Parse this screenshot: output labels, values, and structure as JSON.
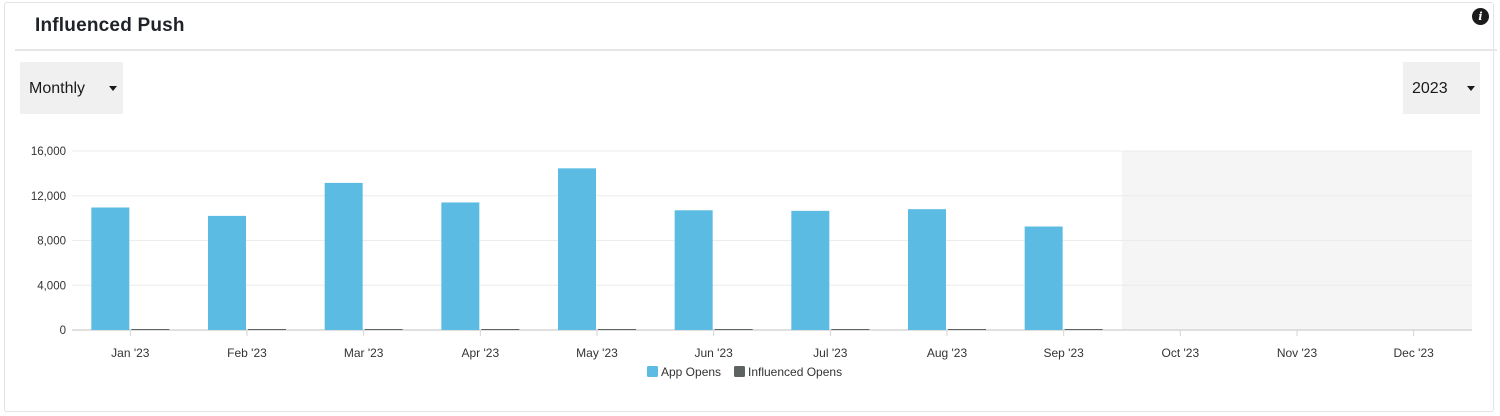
{
  "header": {
    "title": "Influenced Push",
    "info_icon": "info-icon"
  },
  "controls": {
    "period": {
      "value": "Monthly",
      "icon": "caret-down-icon"
    },
    "year": {
      "value": "2023",
      "icon": "caret-down-icon"
    }
  },
  "chart_data": {
    "type": "bar",
    "categories": [
      "Jan '23",
      "Feb '23",
      "Mar '23",
      "Apr '23",
      "May '23",
      "Jun '23",
      "Jul '23",
      "Aug '23",
      "Sep '23",
      "Oct '23",
      "Nov '23",
      "Dec '23"
    ],
    "series": [
      {
        "name": "App Opens",
        "color": "#5bbbe3",
        "values": [
          10950,
          10200,
          13150,
          11400,
          14450,
          10700,
          10650,
          10800,
          9250,
          null,
          null,
          null
        ]
      },
      {
        "name": "Influenced Opens",
        "color": "#5d6361",
        "values": [
          0,
          0,
          0,
          0,
          0,
          0,
          0,
          0,
          0,
          null,
          null,
          null
        ]
      }
    ],
    "yticks": [
      "0",
      "4,000",
      "8,000",
      "12,000",
      "16,000"
    ],
    "ylim": [
      0,
      16000
    ],
    "future_months_shaded": [
      "Oct '23",
      "Nov '23",
      "Dec '23"
    ],
    "grid": true,
    "legend_position": "bottom-center",
    "title": "",
    "xlabel": "",
    "ylabel": ""
  }
}
